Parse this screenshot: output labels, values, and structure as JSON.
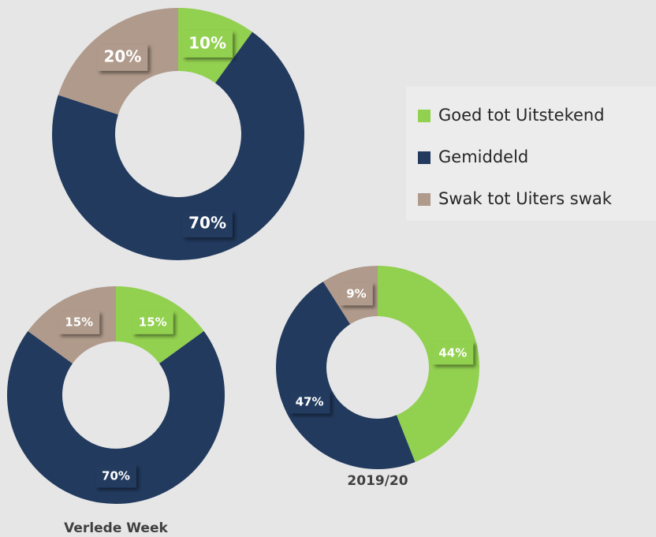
{
  "chart_data": [
    {
      "type": "pie",
      "categories": [
        "Goed tot Uitstekend",
        "Gemiddeld",
        "Swak tot Uiters swak"
      ],
      "values": [
        10,
        70,
        20
      ],
      "value_labels": [
        "10%",
        "70%",
        "20%"
      ],
      "colors": [
        "#92d050",
        "#223a5e",
        "#b09a8b"
      ],
      "legend": "right"
    },
    {
      "type": "pie",
      "title": "Verlede Week",
      "categories": [
        "Goed tot Uitstekend",
        "Gemiddeld",
        "Swak tot Uiters swak"
      ],
      "values": [
        15,
        70,
        15
      ],
      "value_labels": [
        "15%",
        "70%",
        "15%"
      ],
      "colors": [
        "#92d050",
        "#223a5e",
        "#b09a8b"
      ]
    },
    {
      "type": "pie",
      "title": "2019/20",
      "categories": [
        "Goed tot Uitstekend",
        "Gemiddeld",
        "Swak tot Uiters swak"
      ],
      "values": [
        44,
        47,
        9
      ],
      "value_labels": [
        "44%",
        "47%",
        "9%"
      ],
      "colors": [
        "#92d050",
        "#223a5e",
        "#b09a8b"
      ]
    }
  ]
}
